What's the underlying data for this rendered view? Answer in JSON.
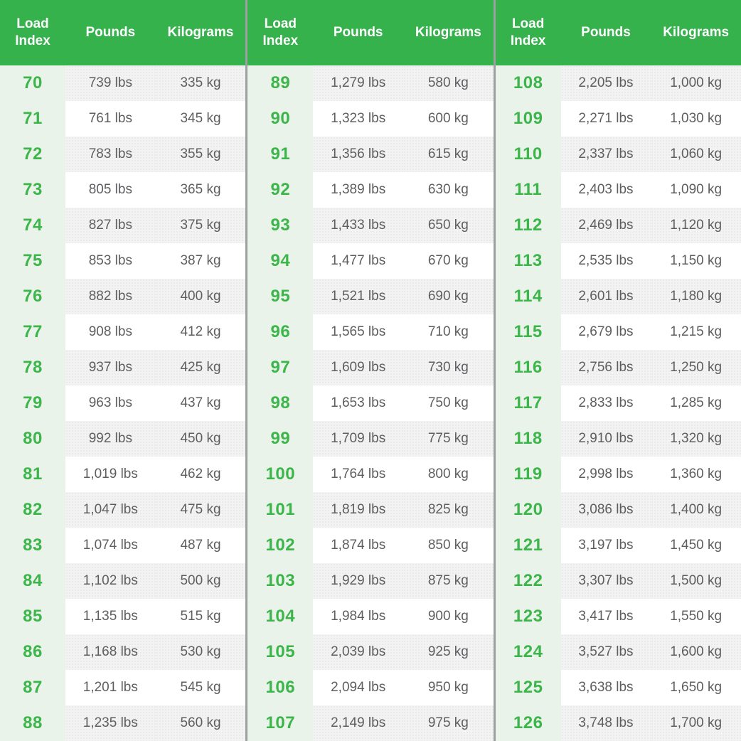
{
  "colors": {
    "header_bg": "#35b24c",
    "header_text": "#ffffff",
    "index_text": "#3cb54a",
    "index_col_bg": "#e9f3ea",
    "stripe_bg": "#f3f3f3",
    "value_text": "#5d5e60",
    "divider": "#9e9fa1",
    "row_bg": "#ffffff"
  },
  "chart_data": {
    "type": "table",
    "columns": [
      "Load Index",
      "Pounds",
      "Kilograms"
    ],
    "groups": [
      {
        "rows": [
          [
            "70",
            "739 lbs",
            "335 kg"
          ],
          [
            "71",
            "761 lbs",
            "345 kg"
          ],
          [
            "72",
            "783 lbs",
            "355 kg"
          ],
          [
            "73",
            "805 lbs",
            "365 kg"
          ],
          [
            "74",
            "827 lbs",
            "375 kg"
          ],
          [
            "75",
            "853 lbs",
            "387 kg"
          ],
          [
            "76",
            "882 lbs",
            "400 kg"
          ],
          [
            "77",
            "908 lbs",
            "412 kg"
          ],
          [
            "78",
            "937 lbs",
            "425 kg"
          ],
          [
            "79",
            "963 lbs",
            "437 kg"
          ],
          [
            "80",
            "992 lbs",
            "450 kg"
          ],
          [
            "81",
            "1,019 lbs",
            "462 kg"
          ],
          [
            "82",
            "1,047 lbs",
            "475 kg"
          ],
          [
            "83",
            "1,074 lbs",
            "487 kg"
          ],
          [
            "84",
            "1,102 lbs",
            "500 kg"
          ],
          [
            "85",
            "1,135 lbs",
            "515 kg"
          ],
          [
            "86",
            "1,168 lbs",
            "530 kg"
          ],
          [
            "87",
            "1,201 lbs",
            "545 kg"
          ],
          [
            "88",
            "1,235 lbs",
            "560 kg"
          ]
        ]
      },
      {
        "rows": [
          [
            "89",
            "1,279 lbs",
            "580 kg"
          ],
          [
            "90",
            "1,323 lbs",
            "600 kg"
          ],
          [
            "91",
            "1,356 lbs",
            "615 kg"
          ],
          [
            "92",
            "1,389 lbs",
            "630 kg"
          ],
          [
            "93",
            "1,433 lbs",
            "650 kg"
          ],
          [
            "94",
            "1,477 lbs",
            "670 kg"
          ],
          [
            "95",
            "1,521 lbs",
            "690 kg"
          ],
          [
            "96",
            "1,565 lbs",
            "710 kg"
          ],
          [
            "97",
            "1,609 lbs",
            "730 kg"
          ],
          [
            "98",
            "1,653 lbs",
            "750 kg"
          ],
          [
            "99",
            "1,709 lbs",
            "775 kg"
          ],
          [
            "100",
            "1,764 lbs",
            "800 kg"
          ],
          [
            "101",
            "1,819 lbs",
            "825 kg"
          ],
          [
            "102",
            "1,874 lbs",
            "850 kg"
          ],
          [
            "103",
            "1,929 lbs",
            "875 kg"
          ],
          [
            "104",
            "1,984 lbs",
            "900 kg"
          ],
          [
            "105",
            "2,039 lbs",
            "925 kg"
          ],
          [
            "106",
            "2,094 lbs",
            "950 kg"
          ],
          [
            "107",
            "2,149 lbs",
            "975 kg"
          ]
        ]
      },
      {
        "rows": [
          [
            "108",
            "2,205 lbs",
            "1,000 kg"
          ],
          [
            "109",
            "2,271 lbs",
            "1,030 kg"
          ],
          [
            "110",
            "2,337 lbs",
            "1,060 kg"
          ],
          [
            "111",
            "2,403 lbs",
            "1,090 kg"
          ],
          [
            "112",
            "2,469 lbs",
            "1,120 kg"
          ],
          [
            "113",
            "2,535 lbs",
            "1,150 kg"
          ],
          [
            "114",
            "2,601 lbs",
            "1,180 kg"
          ],
          [
            "115",
            "2,679 lbs",
            "1,215 kg"
          ],
          [
            "116",
            "2,756 lbs",
            "1,250 kg"
          ],
          [
            "117",
            "2,833 lbs",
            "1,285 kg"
          ],
          [
            "118",
            "2,910 lbs",
            "1,320 kg"
          ],
          [
            "119",
            "2,998 lbs",
            "1,360 kg"
          ],
          [
            "120",
            "3,086 lbs",
            "1,400 kg"
          ],
          [
            "121",
            "3,197 lbs",
            "1,450 kg"
          ],
          [
            "122",
            "3,307 lbs",
            "1,500 kg"
          ],
          [
            "123",
            "3,417 lbs",
            "1,550 kg"
          ],
          [
            "124",
            "3,527 lbs",
            "1,600 kg"
          ],
          [
            "125",
            "3,638 lbs",
            "1,650 kg"
          ],
          [
            "126",
            "3,748 lbs",
            "1,700 kg"
          ]
        ]
      }
    ]
  }
}
